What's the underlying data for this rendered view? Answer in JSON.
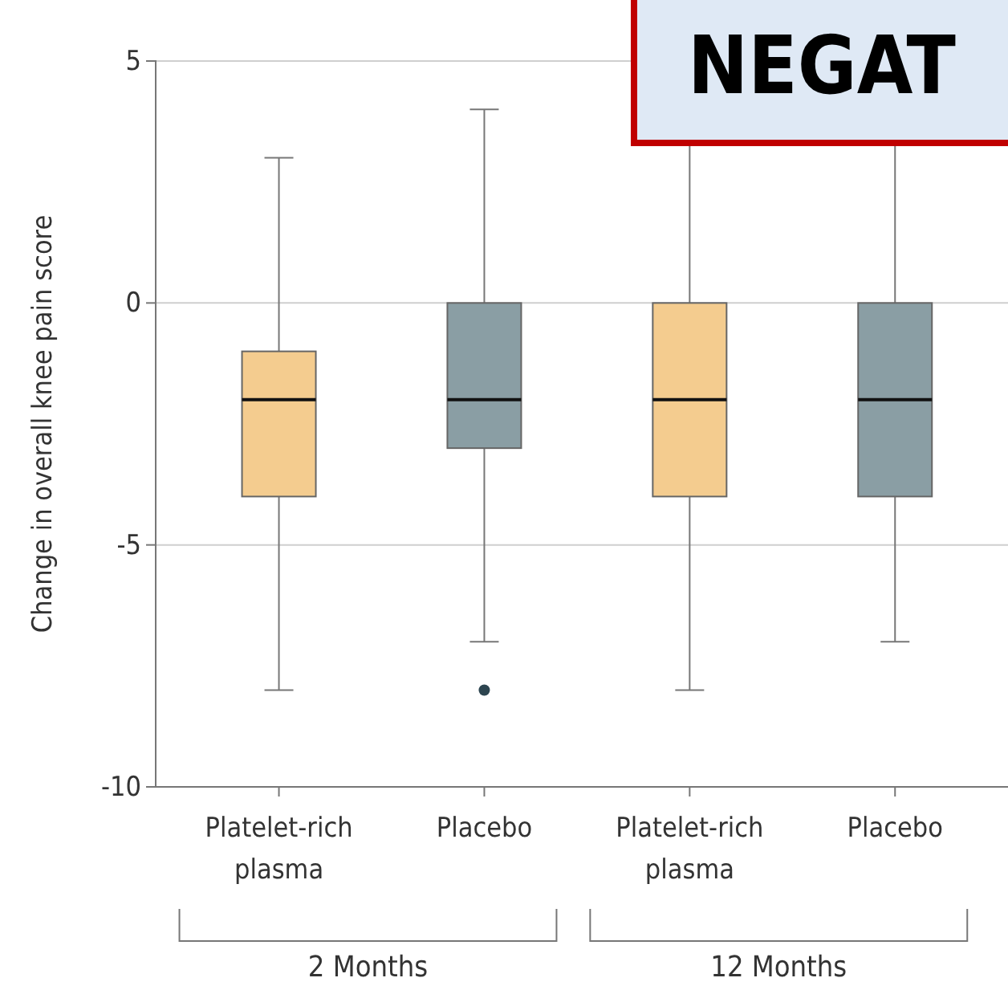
{
  "chart_data": {
    "type": "box",
    "ylabel": "Change in overall knee pain score",
    "categories": [
      "Platelet-rich plasma",
      "Placebo",
      "Platelet-rich plasma",
      "Placebo"
    ],
    "colors": [
      "#f4cc8f",
      "#8a9ea4",
      "#f4cc8f",
      "#8a9ea4"
    ],
    "boxes": [
      {
        "low": -8,
        "q1": -4,
        "median": -2,
        "q3": -1,
        "high": 3
      },
      {
        "low": -7,
        "q1": -3,
        "median": -2,
        "q3": 0,
        "high": 4,
        "outliers": [
          -8
        ]
      },
      {
        "low": -8,
        "q1": -4,
        "median": -2,
        "q3": 0,
        "high": 4
      },
      {
        "low": -7,
        "q1": -4,
        "median": -2,
        "q3": 0,
        "high": 4
      }
    ],
    "ylim": [
      -10,
      5
    ],
    "yticks": [
      -10,
      -5,
      0,
      5
    ],
    "grid": "y",
    "annotations": [
      "2 Months",
      "12 Months",
      "NEGAT"
    ]
  }
}
